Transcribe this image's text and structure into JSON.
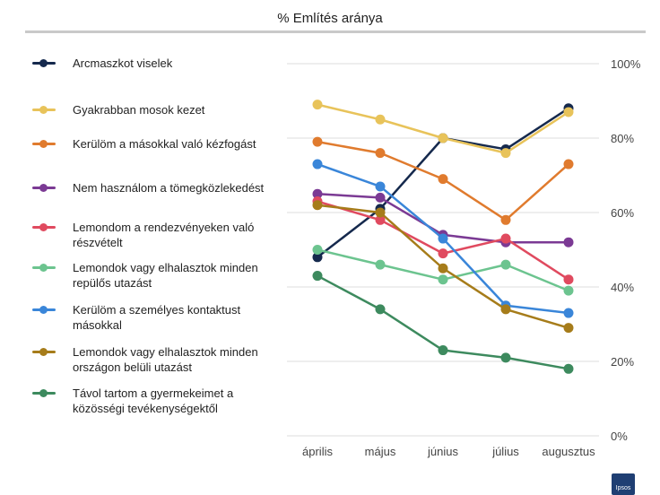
{
  "chart_data": {
    "type": "line",
    "title": "% Említés aránya",
    "categories": [
      "április",
      "május",
      "június",
      "július",
      "augusztus"
    ],
    "y_ticks": [
      "0%",
      "20%",
      "40%",
      "60%",
      "80%",
      "100%"
    ],
    "ylim": [
      0,
      100
    ],
    "grid": true,
    "legend": "left",
    "series": [
      {
        "name": "Arcmaszkot viselek",
        "color": "#15294d",
        "values": [
          48,
          61,
          80,
          77,
          88
        ]
      },
      {
        "name": "Gyakrabban mosok kezet",
        "color": "#e8c35a",
        "values": [
          89,
          85,
          80,
          76,
          87
        ]
      },
      {
        "name": "Kerülöm a másokkal való kézfogást",
        "color": "#e07b2e",
        "values": [
          79,
          76,
          69,
          58,
          73
        ]
      },
      {
        "name": "Nem használom a tömegközlekedést",
        "color": "#7b3a94",
        "values": [
          65,
          64,
          54,
          52,
          52
        ]
      },
      {
        "name": "Lemondom a rendezvényeken való részvételt",
        "color": "#e04a5f",
        "values": [
          63,
          58,
          49,
          53,
          42
        ]
      },
      {
        "name": "Lemondok vagy elhalasztok minden repülős utazást",
        "color": "#6cc48f",
        "values": [
          50,
          46,
          42,
          46,
          39
        ]
      },
      {
        "name": "Kerülöm a személyes kontaktust másokkal",
        "color": "#3a86d9",
        "values": [
          73,
          67,
          53,
          35,
          33
        ]
      },
      {
        "name": "Lemondok vagy elhalasztok minden országon belüli utazást",
        "color": "#a67c1a",
        "values": [
          62,
          60,
          45,
          34,
          29
        ]
      },
      {
        "name": "Távol tartom a gyermekeimet a közösségi tevékenységektől",
        "color": "#3d8a5e",
        "values": [
          43,
          34,
          23,
          21,
          18
        ]
      }
    ]
  },
  "brand": {
    "logo_text": "Ipsos",
    "logo_icon": "ipsos-logo-icon"
  }
}
